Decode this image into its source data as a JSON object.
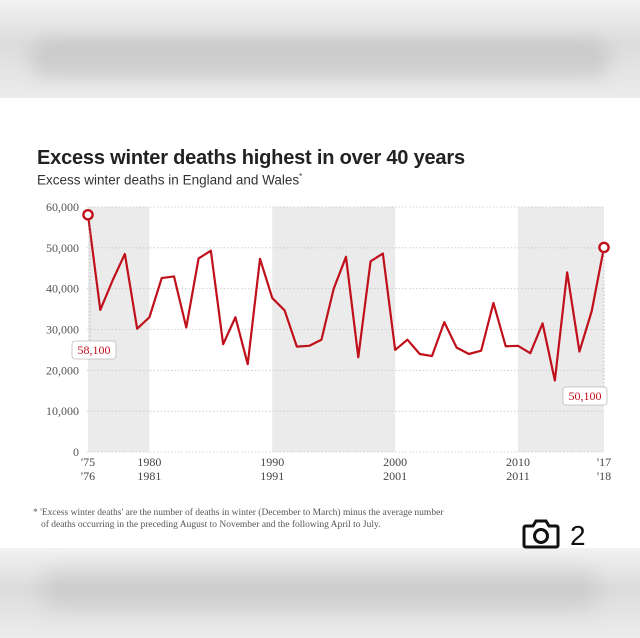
{
  "chart_data": {
    "type": "line",
    "title": "Excess winter deaths highest in over 40 years",
    "subtitle": "Excess winter deaths in England and Wales",
    "subtitle_marker": "*",
    "xlabel": "",
    "ylabel": "",
    "ylim": [
      0,
      60000
    ],
    "yticks": [
      "0",
      "10,000",
      "20,000",
      "30,000",
      "40,000",
      "50,000",
      "60,000"
    ],
    "xtick_labels": [
      {
        "x": 0,
        "top": "'75",
        "bottom": "'76"
      },
      {
        "x": 5,
        "top": "1980",
        "bottom": "1981"
      },
      {
        "x": 15,
        "top": "1990",
        "bottom": "1991"
      },
      {
        "x": 25,
        "top": "2000",
        "bottom": "2001"
      },
      {
        "x": 35,
        "top": "2010",
        "bottom": "2011"
      },
      {
        "x": 42,
        "top": "'17",
        "bottom": "'18"
      }
    ],
    "shaded_decades": [
      [
        0,
        5
      ],
      [
        15,
        25
      ],
      [
        35,
        42
      ]
    ],
    "grid": true,
    "series": [
      {
        "x": [
          0,
          1,
          2,
          3,
          4,
          5,
          6,
          7,
          8,
          9,
          10,
          11,
          12,
          13,
          14,
          15,
          16,
          17,
          18,
          19,
          20,
          21,
          22,
          23,
          24,
          25,
          26,
          27,
          28,
          29,
          30,
          31,
          32,
          33,
          34,
          35,
          36,
          37,
          38,
          39,
          40,
          41,
          42
        ],
        "values": [
          58100,
          34800,
          42000,
          48500,
          30200,
          33000,
          42600,
          43000,
          30500,
          47400,
          49300,
          26400,
          33000,
          21500,
          47300,
          37700,
          34700,
          25800,
          26000,
          27500,
          40000,
          47800,
          23200,
          46700,
          48600,
          25000,
          27500,
          24000,
          23500,
          31800,
          25600,
          24000,
          24800,
          36500,
          25900,
          26000,
          24200,
          31500,
          17500,
          44000,
          24600,
          34500,
          50100
        ],
        "color": "#c0101b"
      }
    ],
    "annotations": [
      {
        "label": "58,100",
        "x": 0,
        "y": 58100
      },
      {
        "label": "50,100",
        "x": 42,
        "y": 50100
      }
    ],
    "footnote_line1": "* 'Excess winter deaths' are the number of deaths in winter (December to March) minus the average number",
    "footnote_line2": "of deaths occurring in the preceding August to November and the following April to July."
  },
  "photo_counter": {
    "icon": "camera-icon",
    "count": "2"
  }
}
